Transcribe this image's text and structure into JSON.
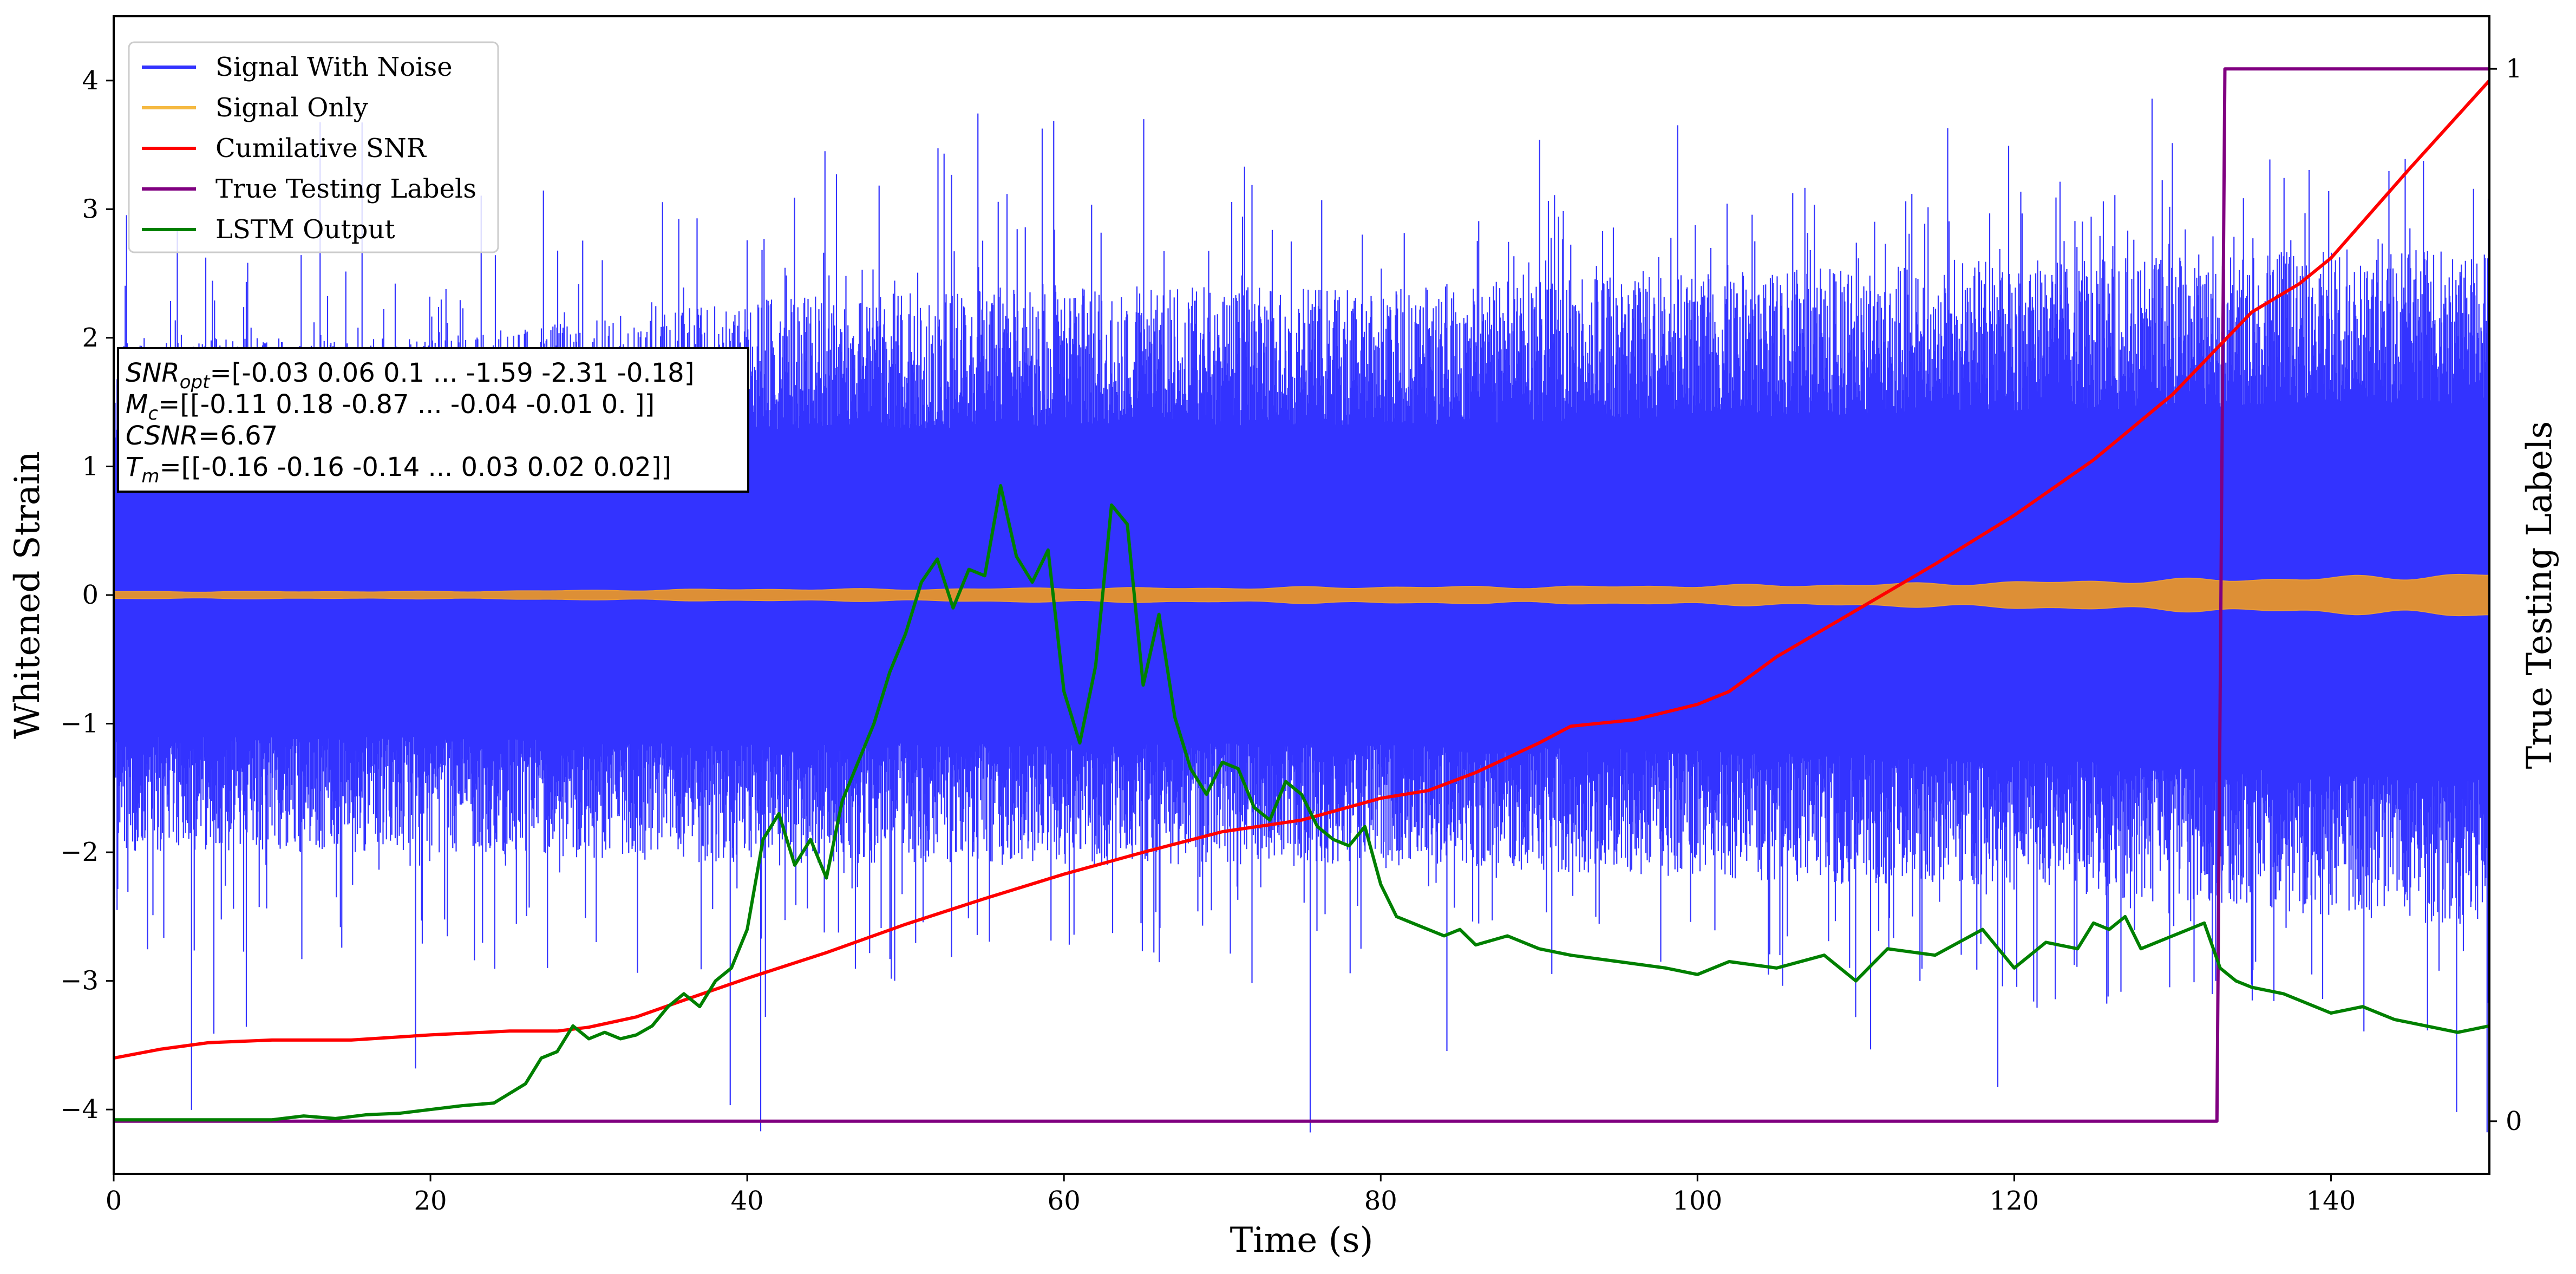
{
  "chart_data": {
    "type": "line",
    "xlabel": "Time (s)",
    "ylabel": "Whitened Strain",
    "ylabel_right": "True Testing Labels",
    "xlim": [
      0,
      150
    ],
    "ylim": [
      -4.5,
      4.5
    ],
    "ylim_right": [
      -0.05,
      1.05
    ],
    "x_ticks": [
      0,
      20,
      40,
      60,
      80,
      100,
      120,
      140
    ],
    "y_ticks": [
      -4,
      -3,
      -2,
      -1,
      0,
      1,
      2,
      3,
      4
    ],
    "y_ticks_right": [
      0,
      1
    ],
    "grid": false,
    "legend_position": "upper-left",
    "legend": [
      {
        "label": "Signal With Noise",
        "color": "#3333ff"
      },
      {
        "label": "Signal Only",
        "color": "#f5b942"
      },
      {
        "label": "Cumilative SNR",
        "color": "#ff0000"
      },
      {
        "label": "True Testing Labels",
        "color": "#800080"
      },
      {
        "label": "LSTM Output",
        "color": "#008000"
      }
    ],
    "annotation_lines": [
      {
        "var": "SNR",
        "sub": "opt",
        "text": "=[-0.03  0.06  0.1  ... -1.59 -2.31 -0.18]"
      },
      {
        "var": "M",
        "sub": "c",
        "text": "=[[-0.11  0.18 -0.87 ... -0.04 -0.01  0.  ]]"
      },
      {
        "var": "CSNR",
        "sub": "",
        "text": "=6.67"
      },
      {
        "var": "T",
        "sub": "m",
        "text": "=[[-0.16 -0.16 -0.14 ...  0.03  0.02  0.02]]"
      }
    ],
    "series": [
      {
        "name": "Signal With Noise",
        "axis": "left",
        "description": "dense noisy strain",
        "band_upper": {
          "x": [
            0,
            20,
            40,
            60,
            80,
            100,
            120,
            140,
            150
          ],
          "y": [
            2.0,
            2.0,
            2.3,
            2.4,
            2.4,
            2.5,
            2.6,
            2.7,
            2.7
          ]
        },
        "band_lower": {
          "x": [
            0,
            20,
            40,
            60,
            80,
            100,
            120,
            140,
            150
          ],
          "y": [
            -2.0,
            -2.0,
            -2.1,
            -2.1,
            -2.1,
            -2.2,
            -2.3,
            -2.5,
            -2.6
          ]
        },
        "spike_max": 3.9,
        "spike_min": -4.2
      },
      {
        "name": "Signal Only",
        "axis": "left",
        "envelope": {
          "x": [
            0,
            20,
            30,
            40,
            50,
            60,
            70,
            80,
            90,
            100,
            110,
            120,
            130,
            140,
            150
          ],
          "y": [
            0.03,
            0.03,
            0.04,
            0.05,
            0.05,
            0.06,
            0.06,
            0.07,
            0.07,
            0.08,
            0.09,
            0.11,
            0.13,
            0.15,
            0.18
          ]
        }
      },
      {
        "name": "Cumilative SNR",
        "axis": "left",
        "x": [
          0,
          3,
          6,
          10,
          15,
          20,
          25,
          28,
          30,
          33,
          36,
          40,
          45,
          50,
          55,
          60,
          65,
          70,
          75,
          80,
          83,
          86,
          90,
          92,
          96,
          100,
          102,
          105,
          110,
          115,
          120,
          125,
          130,
          135,
          138,
          140,
          145,
          150
        ],
        "y": [
          -3.6,
          -3.53,
          -3.48,
          -3.46,
          -3.46,
          -3.42,
          -3.39,
          -3.39,
          -3.36,
          -3.28,
          -3.15,
          -2.98,
          -2.78,
          -2.56,
          -2.36,
          -2.17,
          -2.0,
          -1.84,
          -1.75,
          -1.58,
          -1.52,
          -1.38,
          -1.15,
          -1.02,
          -0.97,
          -0.85,
          -0.75,
          -0.48,
          -0.12,
          0.24,
          0.62,
          1.05,
          1.56,
          2.2,
          2.42,
          2.62,
          3.32,
          4.0
        ]
      },
      {
        "name": "True Testing Labels",
        "axis": "right",
        "x": [
          0,
          132.8,
          133.3,
          150
        ],
        "y": [
          0,
          0,
          1,
          1
        ]
      },
      {
        "name": "LSTM Output",
        "axis": "left",
        "x": [
          0,
          10,
          12,
          14,
          16,
          18,
          20,
          22,
          24,
          26,
          27,
          28,
          29,
          30,
          31,
          32,
          33,
          34,
          35,
          36,
          37,
          38,
          39,
          40,
          41,
          42,
          43,
          44,
          45,
          46,
          47,
          48,
          49,
          50,
          51,
          52,
          53,
          54,
          55,
          56,
          57,
          58,
          59,
          60,
          61,
          62,
          63,
          64,
          65,
          66,
          67,
          68,
          69,
          70,
          71,
          72,
          73,
          74,
          75,
          76,
          77,
          78,
          79,
          80,
          81,
          82,
          83,
          84,
          85,
          86,
          88,
          90,
          92,
          95,
          98,
          100,
          102,
          105,
          108,
          110,
          112,
          115,
          118,
          120,
          122,
          124,
          125,
          126,
          127,
          128,
          130,
          132,
          133,
          134,
          135,
          137,
          140,
          142,
          144,
          146,
          148,
          150
        ],
        "y": [
          -4.08,
          -4.08,
          -4.05,
          -4.07,
          -4.04,
          -4.03,
          -4.0,
          -3.97,
          -3.95,
          -3.8,
          -3.6,
          -3.55,
          -3.35,
          -3.45,
          -3.4,
          -3.45,
          -3.42,
          -3.35,
          -3.2,
          -3.1,
          -3.2,
          -3.0,
          -2.9,
          -2.6,
          -1.9,
          -1.7,
          -2.1,
          -1.9,
          -2.2,
          -1.6,
          -1.3,
          -1.0,
          -0.6,
          -0.3,
          0.1,
          0.28,
          -0.1,
          0.2,
          0.15,
          0.85,
          0.3,
          0.1,
          0.35,
          -0.75,
          -1.15,
          -0.55,
          0.7,
          0.55,
          -0.7,
          -0.15,
          -0.95,
          -1.35,
          -1.55,
          -1.3,
          -1.35,
          -1.65,
          -1.75,
          -1.45,
          -1.55,
          -1.8,
          -1.9,
          -1.95,
          -1.8,
          -2.25,
          -2.5,
          -2.55,
          -2.6,
          -2.65,
          -2.6,
          -2.72,
          -2.65,
          -2.75,
          -2.8,
          -2.85,
          -2.9,
          -2.95,
          -2.85,
          -2.9,
          -2.8,
          -3.0,
          -2.75,
          -2.8,
          -2.6,
          -2.9,
          -2.7,
          -2.75,
          -2.55,
          -2.6,
          -2.5,
          -2.75,
          -2.65,
          -2.55,
          -2.9,
          -3.0,
          -3.05,
          -3.1,
          -3.25,
          -3.2,
          -3.3,
          -3.35,
          -3.4,
          -3.35
        ]
      }
    ]
  }
}
